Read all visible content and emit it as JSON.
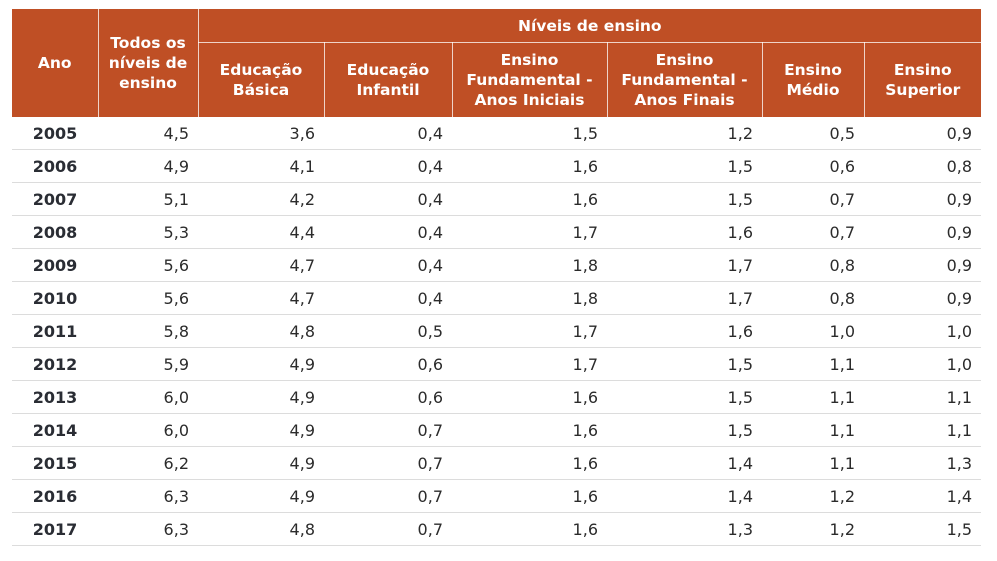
{
  "table": {
    "header": {
      "ano": "Ano",
      "todos": "Todos os níveis de ensino",
      "niveis": "Níveis de ensino",
      "sub": [
        "Educação Básica",
        "Educação Infantil",
        "Ensino Fundamental - Anos Iniciais",
        "Ensino Fundamental - Anos Finais",
        "Ensino Médio",
        "Ensino Superior"
      ]
    },
    "rows": [
      [
        "2005",
        "4,5",
        "3,6",
        "0,4",
        "1,5",
        "1,2",
        "0,5",
        "0,9"
      ],
      [
        "2006",
        "4,9",
        "4,1",
        "0,4",
        "1,6",
        "1,5",
        "0,6",
        "0,8"
      ],
      [
        "2007",
        "5,1",
        "4,2",
        "0,4",
        "1,6",
        "1,5",
        "0,7",
        "0,9"
      ],
      [
        "2008",
        "5,3",
        "4,4",
        "0,4",
        "1,7",
        "1,6",
        "0,7",
        "0,9"
      ],
      [
        "2009",
        "5,6",
        "4,7",
        "0,4",
        "1,8",
        "1,7",
        "0,8",
        "0,9"
      ],
      [
        "2010",
        "5,6",
        "4,7",
        "0,4",
        "1,8",
        "1,7",
        "0,8",
        "0,9"
      ],
      [
        "2011",
        "5,8",
        "4,8",
        "0,5",
        "1,7",
        "1,6",
        "1,0",
        "1,0"
      ],
      [
        "2012",
        "5,9",
        "4,9",
        "0,6",
        "1,7",
        "1,5",
        "1,1",
        "1,0"
      ],
      [
        "2013",
        "6,0",
        "4,9",
        "0,6",
        "1,6",
        "1,5",
        "1,1",
        "1,1"
      ],
      [
        "2014",
        "6,0",
        "4,9",
        "0,7",
        "1,6",
        "1,5",
        "1,1",
        "1,1"
      ],
      [
        "2015",
        "6,2",
        "4,9",
        "0,7",
        "1,6",
        "1,4",
        "1,1",
        "1,3"
      ],
      [
        "2016",
        "6,3",
        "4,9",
        "0,7",
        "1,6",
        "1,4",
        "1,2",
        "1,4"
      ],
      [
        "2017",
        "6,3",
        "4,8",
        "0,7",
        "1,6",
        "1,3",
        "1,2",
        "1,5"
      ]
    ]
  },
  "colors": {
    "header_bg": "#bf4f25",
    "header_text": "#ffffff",
    "row_border": "#dcdcdc"
  }
}
